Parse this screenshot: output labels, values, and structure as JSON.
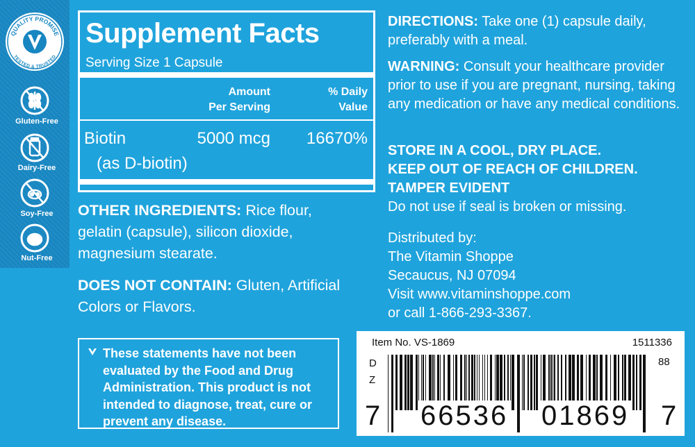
{
  "badges": {
    "quality": {
      "top": "QUALITY PROMISE",
      "bottom": "TESTED & TRUSTED"
    },
    "icons": [
      "Gluten-Free",
      "Dairy-Free",
      "Soy-Free",
      "Nut-Free"
    ]
  },
  "supplement_facts": {
    "title": "Supplement Facts",
    "serving": "Serving Size 1 Capsule",
    "headers": {
      "amount": [
        "Amount",
        "Per Serving"
      ],
      "daily_value": [
        "% Daily",
        "Value"
      ]
    },
    "row": {
      "name": "Biotin",
      "amount": "5000 mcg",
      "daily_value": "16670%",
      "source": "(as D-biotin)"
    }
  },
  "other_ingredients": {
    "label": "OTHER INGREDIENTS:",
    "text": "Rice flour, gelatin (capsule), silicon dioxide, magnesium stearate."
  },
  "does_not_contain": {
    "label": "DOES NOT CONTAIN:",
    "text": "Gluten, Artificial Colors or Flavors."
  },
  "disclaimer": "These statements have not been evaluated by the Food and Drug Administration. This product is not intended to diagnose, treat, cure or prevent any disease.",
  "directions": {
    "label": "DIRECTIONS:",
    "text": "Take one (1) capsule daily, preferably with a meal."
  },
  "warning": {
    "label": "WARNING:",
    "text": "Consult your healthcare provider prior to use if you are pregnant, nursing, taking any medication or have any medical conditions."
  },
  "storage": [
    "STORE IN A COOL, DRY PLACE.",
    "KEEP OUT OF REACH OF CHILDREN.",
    "TAMPER EVIDENT"
  ],
  "tamper_note": "Do not use if seal is broken or missing.",
  "distributor": [
    "Distributed by:",
    "The Vitamin Shoppe",
    "Secaucus, NJ 07094",
    "Visit www.vitaminshoppe.com",
    "or call 1-866-293-3367."
  ],
  "barcode": {
    "item": "Item No. VS-1869",
    "code": "1511336",
    "side": [
      "D",
      "Z"
    ],
    "right": "88",
    "digits": [
      "7",
      "66536",
      "01869",
      "7"
    ]
  }
}
